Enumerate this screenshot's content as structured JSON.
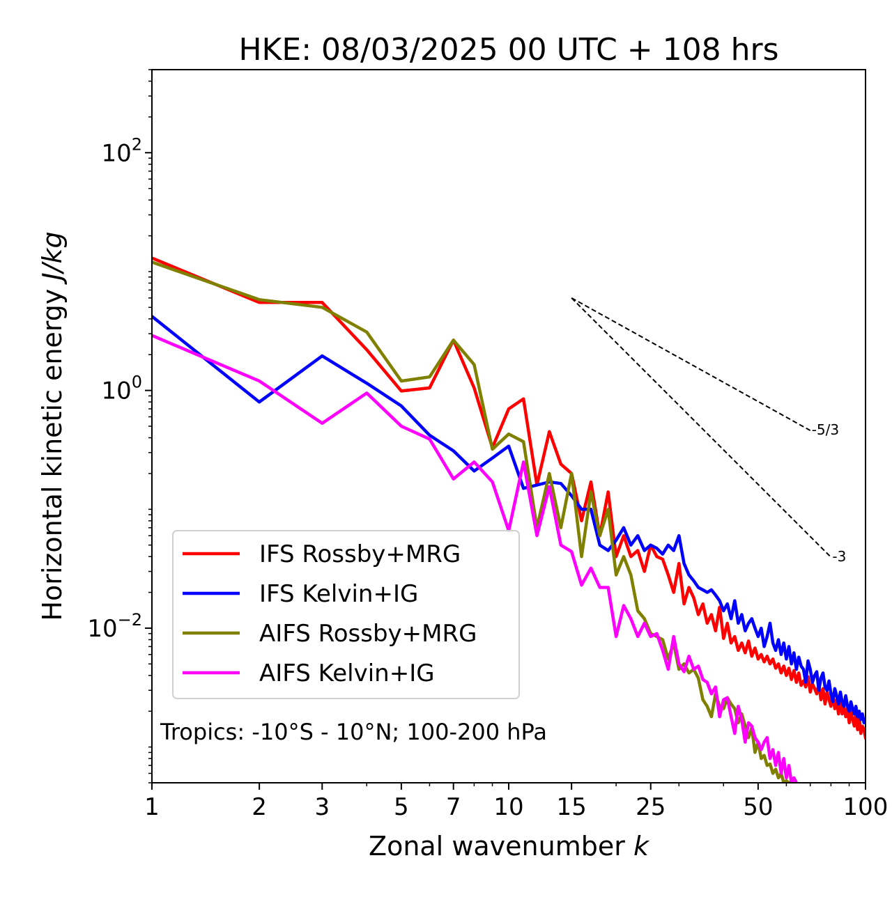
{
  "chart_data": {
    "type": "line",
    "title": "HKE: 08/03/2025 00 UTC + 108 hrs",
    "xlabel": "Zonal wavenumber ",
    "xlabel_italic": "k",
    "ylabel": "Horizontal kinetic energy ",
    "ylabel_italic": "J/kg",
    "xscale": "log",
    "yscale": "log",
    "xlim": [
      1,
      100
    ],
    "ylim": [
      0.0005,
      500
    ],
    "x_ticks": [
      1,
      2,
      3,
      5,
      7,
      10,
      15,
      25,
      50,
      100
    ],
    "x_tick_labels": [
      "1",
      "2",
      "3",
      "5",
      "7",
      "10",
      "15",
      "25",
      "50",
      "100"
    ],
    "y_ticks": [
      0.01,
      1,
      100
    ],
    "y_tick_labels": [
      {
        "base": "10",
        "exp": "−2"
      },
      {
        "base": "10",
        "exp": "0"
      },
      {
        "base": "10",
        "exp": "2"
      }
    ],
    "grid": false,
    "legend_position": "lower-left",
    "annotation": "Tropics: -10°S - 10°N; 100-200 hPa",
    "reference_lines": [
      {
        "label": "-5/3",
        "slope": -1.6667,
        "x_start": 15,
        "y_start": 6.0,
        "x_end": 70
      },
      {
        "label": "-3",
        "slope": -3,
        "x_start": 15,
        "y_start": 6.0,
        "x_end": 80
      }
    ],
    "series": [
      {
        "name": "IFS Rossby+MRG",
        "color": "#ff0000",
        "x": [
          1,
          2,
          3,
          4,
          5,
          6,
          7,
          8,
          9,
          10,
          11,
          12,
          13,
          14,
          15,
          16,
          17,
          18,
          19,
          20,
          21,
          22,
          23,
          24,
          25,
          26,
          27,
          28,
          29,
          30,
          31,
          32,
          33,
          34,
          35,
          36,
          37,
          38,
          39,
          40,
          41,
          42,
          43,
          44,
          45,
          46,
          47,
          48,
          49,
          50,
          51,
          52,
          53,
          54,
          55,
          56,
          57,
          58,
          59,
          60,
          61,
          62,
          63,
          64,
          65,
          66,
          67,
          68,
          69,
          70,
          71,
          72,
          73,
          74,
          75,
          76,
          77,
          78,
          79,
          80,
          81,
          82,
          83,
          84,
          85,
          86,
          87,
          88,
          89,
          90,
          91,
          92,
          93,
          94,
          95,
          96,
          97,
          98,
          99,
          100
        ],
        "y": [
          13,
          5.5,
          5.5,
          2.2,
          0.99,
          1.05,
          2.65,
          1.05,
          0.33,
          0.7,
          0.85,
          0.16,
          0.45,
          0.24,
          0.2,
          0.08,
          0.17,
          0.06,
          0.14,
          0.04,
          0.06,
          0.04,
          0.045,
          0.03,
          0.05,
          0.04,
          0.038,
          0.028,
          0.02,
          0.035,
          0.016,
          0.022,
          0.018,
          0.013,
          0.016,
          0.011,
          0.013,
          0.0095,
          0.015,
          0.0082,
          0.011,
          0.0075,
          0.0085,
          0.0065,
          0.0075,
          0.0062,
          0.0078,
          0.0058,
          0.0068,
          0.0055,
          0.006,
          0.0052,
          0.0058,
          0.005,
          0.0055,
          0.0046,
          0.005,
          0.0042,
          0.0048,
          0.004,
          0.0046,
          0.0037,
          0.0044,
          0.0035,
          0.0042,
          0.0033,
          0.0036,
          0.0032,
          0.0039,
          0.0029,
          0.0034,
          0.0031,
          0.0028,
          0.0034,
          0.0025,
          0.0031,
          0.0023,
          0.0029,
          0.0025,
          0.0022,
          0.0028,
          0.0021,
          0.0025,
          0.0019,
          0.0026,
          0.0019,
          0.0022,
          0.0018,
          0.0021,
          0.0016,
          0.002,
          0.0017,
          0.0015,
          0.0019,
          0.0014,
          0.0018,
          0.0013,
          0.0015,
          0.0014,
          0.0012
        ]
      },
      {
        "name": "IFS Kelvin+IG",
        "color": "#0000ff",
        "x": [
          1,
          2,
          3,
          4,
          5,
          6,
          7,
          8,
          9,
          10,
          11,
          12,
          13,
          14,
          15,
          16,
          17,
          18,
          19,
          20,
          21,
          22,
          23,
          24,
          25,
          26,
          27,
          28,
          29,
          30,
          31,
          32,
          33,
          34,
          35,
          36,
          37,
          38,
          39,
          40,
          41,
          42,
          43,
          44,
          45,
          46,
          47,
          48,
          49,
          50,
          51,
          52,
          53,
          54,
          55,
          56,
          57,
          58,
          59,
          60,
          61,
          62,
          63,
          64,
          65,
          66,
          67,
          68,
          69,
          70,
          71,
          72,
          73,
          74,
          75,
          76,
          77,
          78,
          79,
          80,
          81,
          82,
          83,
          84,
          85,
          86,
          87,
          88,
          89,
          90,
          91,
          92,
          93,
          94,
          95,
          96,
          97,
          98,
          99,
          100
        ],
        "y": [
          4.2,
          0.8,
          1.95,
          1.15,
          0.74,
          0.42,
          0.31,
          0.21,
          0.27,
          0.34,
          0.15,
          0.16,
          0.17,
          0.165,
          0.13,
          0.1,
          0.1,
          0.05,
          0.045,
          0.055,
          0.07,
          0.05,
          0.06,
          0.045,
          0.05,
          0.047,
          0.042,
          0.05,
          0.045,
          0.06,
          0.035,
          0.028,
          0.025,
          0.022,
          0.021,
          0.02,
          0.021,
          0.019,
          0.017,
          0.014,
          0.016,
          0.012,
          0.017,
          0.011,
          0.013,
          0.0095,
          0.011,
          0.012,
          0.01,
          0.0085,
          0.01,
          0.007,
          0.0085,
          0.011,
          0.0075,
          0.0065,
          0.008,
          0.006,
          0.0075,
          0.0055,
          0.007,
          0.005,
          0.0062,
          0.0045,
          0.0057,
          0.0048,
          0.0045,
          0.0035,
          0.0053,
          0.0045,
          0.0035,
          0.004,
          0.0043,
          0.003,
          0.0038,
          0.0042,
          0.0032,
          0.003,
          0.0036,
          0.0028,
          0.0024,
          0.0031,
          0.0027,
          0.0023,
          0.0029,
          0.0024,
          0.0022,
          0.0027,
          0.0022,
          0.002,
          0.0024,
          0.0021,
          0.0019,
          0.0022,
          0.0018,
          0.002,
          0.0017,
          0.0019,
          0.0016,
          0.0017
        ]
      },
      {
        "name": "AIFS Rossby+MRG",
        "color": "#808000",
        "x": [
          1,
          2,
          3,
          4,
          5,
          6,
          7,
          8,
          9,
          10,
          11,
          12,
          13,
          14,
          15,
          16,
          17,
          18,
          19,
          20,
          21,
          22,
          23,
          24,
          25,
          26,
          27,
          28,
          29,
          30,
          31,
          32,
          33,
          34,
          35,
          36,
          37,
          38,
          39,
          40,
          41,
          42,
          43,
          44,
          45,
          46,
          47,
          48,
          49,
          50,
          51,
          52,
          53,
          54,
          55,
          56,
          57,
          58,
          59,
          60,
          61
        ],
        "y": [
          12,
          5.8,
          5.0,
          3.1,
          1.2,
          1.3,
          2.65,
          1.65,
          0.32,
          0.43,
          0.37,
          0.07,
          0.2,
          0.07,
          0.2,
          0.04,
          0.14,
          0.06,
          0.1,
          0.028,
          0.04,
          0.028,
          0.014,
          0.012,
          0.009,
          0.0085,
          0.008,
          0.0055,
          0.0075,
          0.0045,
          0.005,
          0.0042,
          0.0045,
          0.0038,
          0.0025,
          0.0022,
          0.0018,
          0.0028,
          0.0022,
          0.0021,
          0.0026,
          0.0023,
          0.0021,
          0.0016,
          0.0019,
          0.0015,
          0.0012,
          0.00145,
          0.0009,
          0.0011,
          0.0008,
          0.00085,
          0.0007,
          0.00072,
          0.0006,
          0.00065,
          0.00055,
          0.0006,
          0.0005,
          0.00052,
          0.0005
        ]
      },
      {
        "name": "AIFS Kelvin+IG",
        "color": "#ff00ff",
        "x": [
          1,
          2,
          3,
          4,
          5,
          6,
          7,
          8,
          9,
          10,
          11,
          12,
          13,
          14,
          15,
          16,
          17,
          18,
          19,
          20,
          21,
          22,
          23,
          24,
          25,
          26,
          27,
          28,
          29,
          30,
          31,
          32,
          33,
          34,
          35,
          36,
          37,
          38,
          39,
          40,
          41,
          42,
          43,
          44,
          45,
          46,
          47,
          48,
          49,
          50,
          51,
          52,
          53,
          54,
          55,
          56,
          57,
          58,
          59,
          60,
          61,
          62,
          63,
          64
        ],
        "y": [
          2.9,
          1.2,
          0.53,
          0.95,
          0.5,
          0.39,
          0.18,
          0.25,
          0.17,
          0.066,
          0.25,
          0.06,
          0.155,
          0.05,
          0.044,
          0.023,
          0.032,
          0.022,
          0.022,
          0.0085,
          0.0155,
          0.012,
          0.0085,
          0.011,
          0.0085,
          0.009,
          0.0065,
          0.0045,
          0.0085,
          0.005,
          0.0043,
          0.0058,
          0.0045,
          0.0048,
          0.0037,
          0.0035,
          0.0028,
          0.0032,
          0.0018,
          0.0025,
          0.0026,
          0.0018,
          0.0013,
          0.0022,
          0.0017,
          0.0011,
          0.0016,
          0.0015,
          0.0012,
          0.0011,
          0.00095,
          0.0011,
          0.0012,
          0.0008,
          0.00095,
          0.0007,
          0.0009,
          0.0006,
          0.0008,
          0.00055,
          0.0007,
          0.0005,
          0.00055,
          0.0005
        ]
      }
    ]
  }
}
